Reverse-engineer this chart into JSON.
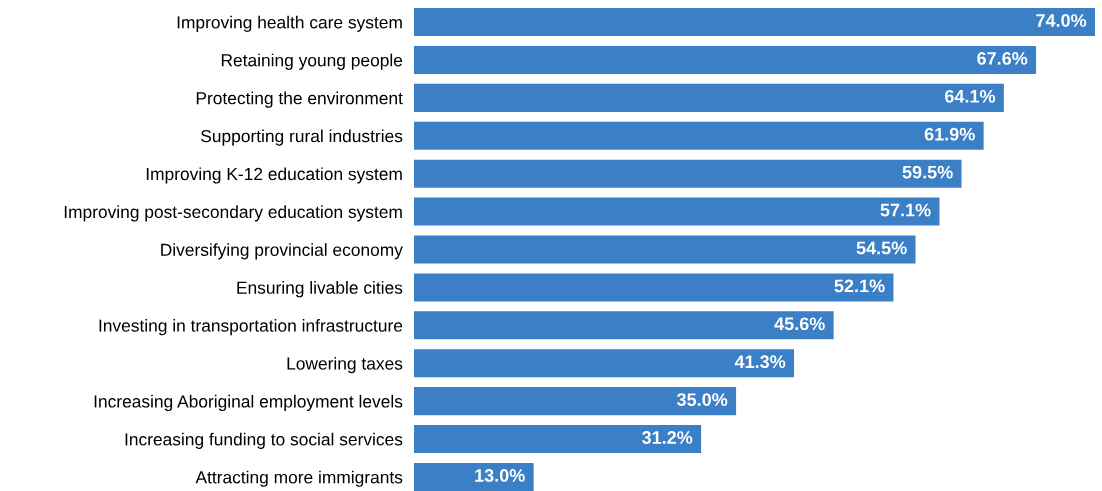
{
  "chart_data": {
    "type": "bar",
    "orientation": "horizontal",
    "categories": [
      "Improving health care system",
      "Retaining young people",
      "Protecting the environment",
      "Supporting rural industries",
      "Improving K-12 education system",
      "Improving post-secondary education system",
      "Diversifying provincial economy",
      "Ensuring livable cities",
      "Investing in transportation infrastructure",
      "Lowering taxes",
      "Increasing Aboriginal employment levels",
      "Increasing funding to social services",
      "Attracting more immigrants"
    ],
    "values": [
      74.0,
      67.6,
      64.1,
      61.9,
      59.5,
      57.1,
      54.5,
      52.1,
      45.6,
      41.3,
      35.0,
      31.2,
      13.0
    ],
    "value_labels": [
      "74.0%",
      "67.6%",
      "64.1%",
      "61.9%",
      "59.5%",
      "57.1%",
      "54.5%",
      "52.1%",
      "45.6%",
      "41.3%",
      "35.0%",
      "31.2%",
      "13.0%"
    ],
    "color": "#3b80c6"
  }
}
